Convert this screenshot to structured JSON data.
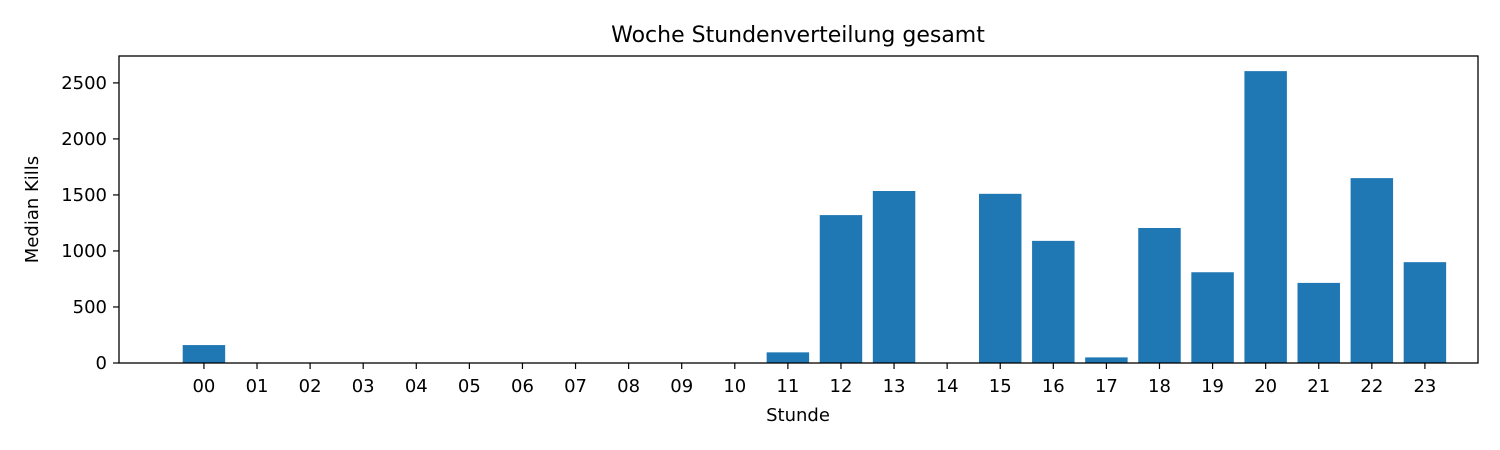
{
  "chart_data": {
    "type": "bar",
    "title": "Woche Stundenverteilung gesamt",
    "xlabel": "Stunde",
    "ylabel": "Median Kills",
    "categories": [
      "00",
      "01",
      "02",
      "03",
      "04",
      "05",
      "06",
      "07",
      "08",
      "09",
      "10",
      "11",
      "12",
      "13",
      "14",
      "15",
      "16",
      "17",
      "18",
      "19",
      "20",
      "21",
      "22",
      "23"
    ],
    "values": [
      160,
      0,
      0,
      0,
      0,
      0,
      0,
      3,
      2,
      0,
      0,
      95,
      1320,
      1535,
      0,
      1510,
      1090,
      50,
      1205,
      810,
      2605,
      715,
      1650,
      900
    ],
    "ylim": [
      0,
      2740
    ],
    "yticks": [
      0,
      500,
      1000,
      1500,
      2000,
      2500
    ],
    "bar_color": "#1f77b4",
    "grid": false,
    "legend": "none"
  }
}
